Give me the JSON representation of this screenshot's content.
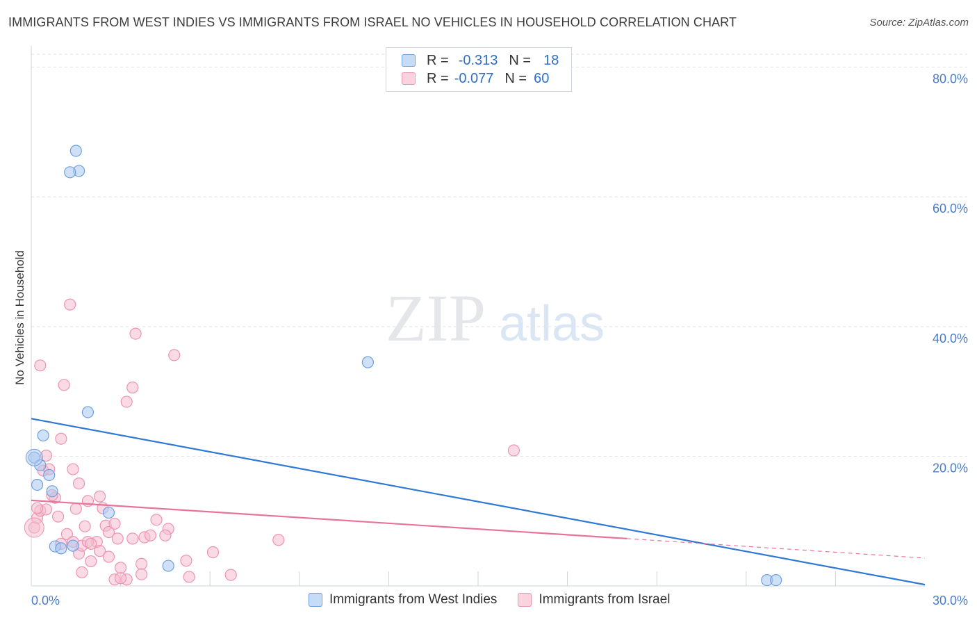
{
  "header": {
    "title": "IMMIGRANTS FROM WEST INDIES VS IMMIGRANTS FROM ISRAEL NO VEHICLES IN HOUSEHOLD CORRELATION CHART",
    "source": "Source: ZipAtlas.com"
  },
  "watermark": {
    "zip": "ZIP",
    "atlas": "atlas"
  },
  "legend": {
    "rows": [
      {
        "label": "R =",
        "r": "-0.313",
        "n_label": "N =",
        "n": "18"
      },
      {
        "label": "R =",
        "r": "-0.077",
        "n_label": "N =",
        "n": "60"
      }
    ]
  },
  "bottom_legend": {
    "west_indies": "Immigrants from West Indies",
    "israel": "Immigrants from Israel"
  },
  "colors": {
    "blue_fill": "#a9c8f0",
    "blue_stroke": "#6f9fe0",
    "blue_line": "#2f78d4",
    "pink_fill": "#f6bccd",
    "pink_stroke": "#ee94b0",
    "pink_line": "#e8739a",
    "axis_text": "#4a7cc9",
    "grid": "#dde1e6"
  },
  "chart_data": {
    "type": "scatter",
    "title": "IMMIGRANTS FROM WEST INDIES VS IMMIGRANTS FROM ISRAEL NO VEHICLES IN HOUSEHOLD CORRELATION CHART",
    "xlabel": "",
    "ylabel": "No Vehicles in Household",
    "xlim": [
      0,
      30
    ],
    "ylim": [
      0,
      82
    ],
    "x_tick_labels": [
      "0.0%",
      "30.0%"
    ],
    "y_ticks": [
      20,
      40,
      60,
      80
    ],
    "y_tick_labels": [
      "20.0%",
      "40.0%",
      "60.0%",
      "80.0%"
    ],
    "x_minor_ticks": [
      3,
      6,
      9,
      12,
      15,
      18,
      21,
      24,
      27
    ],
    "series": [
      {
        "name": "Immigrants from West Indies",
        "color": "blue",
        "points": [
          [
            0.1,
            19.8
          ],
          [
            0.3,
            18.6
          ],
          [
            0.4,
            23.2
          ],
          [
            0.6,
            17.1
          ],
          [
            0.2,
            15.6
          ],
          [
            0.7,
            14.6
          ],
          [
            1.5,
            67.1
          ],
          [
            1.6,
            64.0
          ],
          [
            1.3,
            63.8
          ],
          [
            1.9,
            26.8
          ],
          [
            2.6,
            11.3
          ],
          [
            0.8,
            6.1
          ],
          [
            1.0,
            5.8
          ],
          [
            1.4,
            6.2
          ],
          [
            4.6,
            3.1
          ],
          [
            11.3,
            34.5
          ],
          [
            24.7,
            0.9
          ],
          [
            25.0,
            0.9
          ]
        ],
        "trend": {
          "x": [
            0,
            30
          ],
          "y": [
            25.8,
            0.2
          ],
          "dashed_after": null
        }
      },
      {
        "name": "Immigrants from Israel",
        "color": "pink",
        "points": [
          [
            0.1,
            9.0
          ],
          [
            0.2,
            10.5
          ],
          [
            0.3,
            11.6
          ],
          [
            0.4,
            17.8
          ],
          [
            0.5,
            20.1
          ],
          [
            0.6,
            18.0
          ],
          [
            0.3,
            34.0
          ],
          [
            1.1,
            31.0
          ],
          [
            1.3,
            43.4
          ],
          [
            1.0,
            22.7
          ],
          [
            1.4,
            18.0
          ],
          [
            1.6,
            15.8
          ],
          [
            0.8,
            13.6
          ],
          [
            0.9,
            10.7
          ],
          [
            1.5,
            11.9
          ],
          [
            1.9,
            13.1
          ],
          [
            2.3,
            13.8
          ],
          [
            2.4,
            12.0
          ],
          [
            2.5,
            9.3
          ],
          [
            2.8,
            9.6
          ],
          [
            2.2,
            6.8
          ],
          [
            2.6,
            8.3
          ],
          [
            2.9,
            7.3
          ],
          [
            3.2,
            28.4
          ],
          [
            3.4,
            30.6
          ],
          [
            3.5,
            38.9
          ],
          [
            4.8,
            35.6
          ],
          [
            1.0,
            6.5
          ],
          [
            1.2,
            8.0
          ],
          [
            1.4,
            6.8
          ],
          [
            1.6,
            5.0
          ],
          [
            1.7,
            6.2
          ],
          [
            1.9,
            6.8
          ],
          [
            2.0,
            3.8
          ],
          [
            2.3,
            5.4
          ],
          [
            2.6,
            4.5
          ],
          [
            3.0,
            2.8
          ],
          [
            3.2,
            1.0
          ],
          [
            3.4,
            7.3
          ],
          [
            3.7,
            3.4
          ],
          [
            3.8,
            7.5
          ],
          [
            4.0,
            7.8
          ],
          [
            4.2,
            10.2
          ],
          [
            4.6,
            8.8
          ],
          [
            5.2,
            3.9
          ],
          [
            5.3,
            1.4
          ],
          [
            6.1,
            5.2
          ],
          [
            6.7,
            1.7
          ],
          [
            8.3,
            7.1
          ],
          [
            2.8,
            1.0
          ],
          [
            1.7,
            2.1
          ],
          [
            3.0,
            1.2
          ],
          [
            0.5,
            11.8
          ],
          [
            0.7,
            14.0
          ],
          [
            1.8,
            9.2
          ],
          [
            16.2,
            20.9
          ],
          [
            4.5,
            7.8
          ],
          [
            2.0,
            6.5
          ],
          [
            0.2,
            12.0
          ],
          [
            3.7,
            1.8
          ]
        ],
        "trend": {
          "x": [
            0,
            20
          ],
          "y": [
            13.2,
            7.3
          ],
          "dashed_to": [
            30,
            4.3
          ]
        }
      }
    ],
    "legend_position": "top-center"
  }
}
